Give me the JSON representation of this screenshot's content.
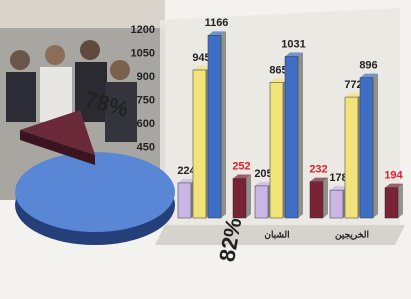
{
  "chart_data": {
    "type": "bar",
    "categories": [
      null,
      "الشبان",
      "الخريجين"
    ],
    "series": [
      {
        "color": "#c9b6e4",
        "values": [
          224,
          205,
          178
        ]
      },
      {
        "color": "#f2e27a",
        "values": [
          945,
          865,
          772
        ]
      },
      {
        "color": "#3f6fc4",
        "values": [
          1166,
          1031,
          896
        ]
      },
      {
        "color": "#7a2236",
        "values": [
          252,
          232,
          194
        ]
      }
    ],
    "label_colors": [
      "#222222",
      "#222222",
      "#222222",
      "#e0202a"
    ],
    "ylim": [
      0,
      1200
    ],
    "yticks": [
      450,
      600,
      750,
      900,
      1050,
      1200
    ],
    "annotations": [
      "78%",
      "82%"
    ]
  }
}
